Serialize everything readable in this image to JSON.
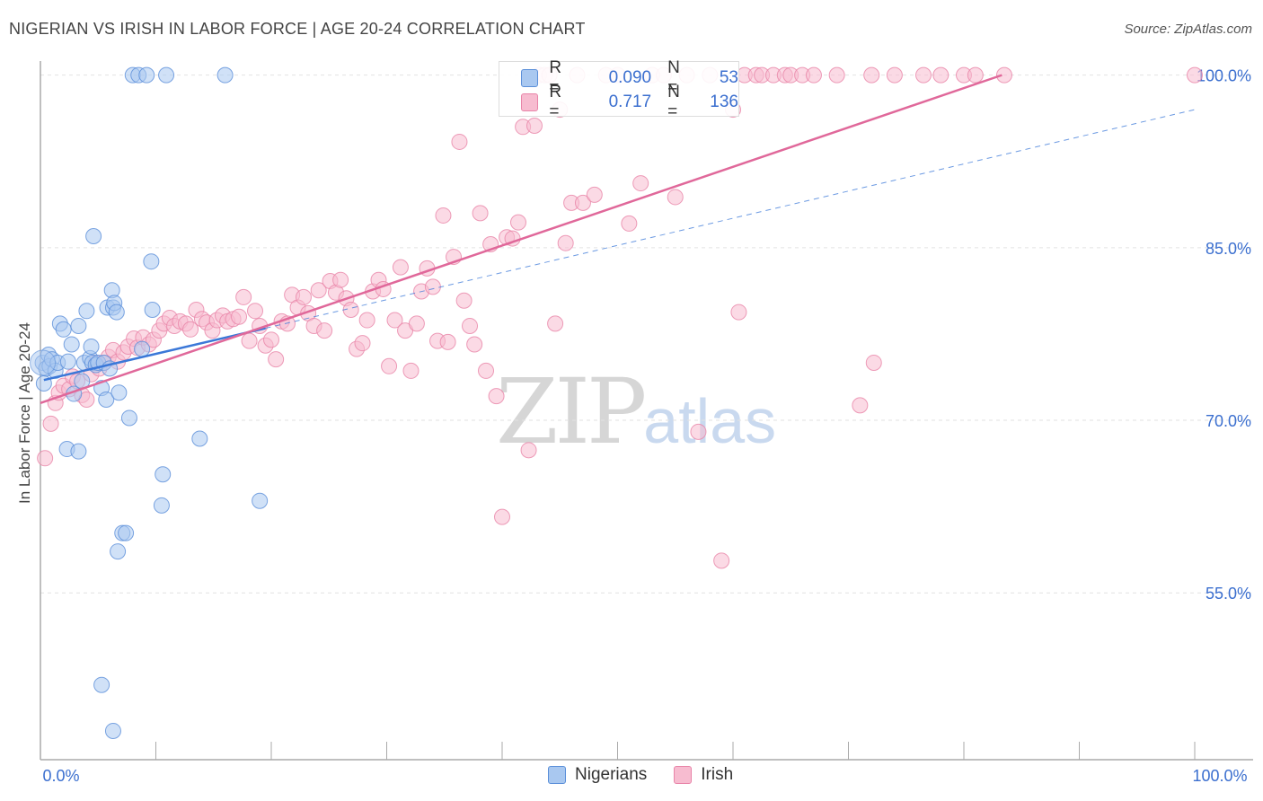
{
  "title": "NIGERIAN VS IRISH IN LABOR FORCE | AGE 20-24 CORRELATION CHART",
  "source": "Source: ZipAtlas.com",
  "watermark": {
    "zip": "ZIP",
    "atlas": "atlas"
  },
  "legend_top": {
    "r_label": "R =",
    "n_label": "N =",
    "rows": [
      {
        "r": "0.090",
        "n": "53"
      },
      {
        "r": "0.717",
        "n": "136"
      }
    ]
  },
  "colors": {
    "nigerians_fill": "#a9c8f0",
    "nigerians_stroke": "#5b8fd9",
    "nigerians_line": "#3b78d8",
    "irish_fill": "#f7bcd0",
    "irish_stroke": "#e884a8",
    "irish_line": "#e0689a",
    "tick_text": "#3b6fcf",
    "grid": "#e2e2e2"
  },
  "chart_data": {
    "type": "scatter",
    "title": "NIGERIAN VS IRISH IN LABOR FORCE | AGE 20-24 CORRELATION CHART",
    "xlabel": "",
    "ylabel": "In Labor Force | Age 20-24",
    "xlim": [
      0,
      100
    ],
    "ylim": [
      40.5,
      102
    ],
    "x_tick_labels": [
      "0.0%",
      "100.0%"
    ],
    "y_ticks": [
      55,
      70,
      85,
      100
    ],
    "y_tick_labels": [
      "55.0%",
      "70.0%",
      "85.0%",
      "100.0%"
    ],
    "grid": true,
    "legend_position": "bottom",
    "series": [
      {
        "name": "Nigerians",
        "R": 0.09,
        "N": 53,
        "trend_solid": [
          [
            0.3,
            73.5
          ],
          [
            19.5,
            78.0
          ]
        ],
        "trend_dashed": [
          [
            19.5,
            78.0
          ],
          [
            100,
            97.0
          ]
        ],
        "points": [
          [
            0.2,
            75.0
          ],
          [
            0.3,
            73.2
          ],
          [
            0.5,
            74.5
          ],
          [
            0.7,
            75.7
          ],
          [
            0.8,
            74.7
          ],
          [
            1.0,
            75.3
          ],
          [
            1.3,
            74.3
          ],
          [
            1.5,
            75.0
          ],
          [
            1.7,
            78.4
          ],
          [
            2.0,
            77.9
          ],
          [
            2.4,
            75.1
          ],
          [
            2.7,
            76.6
          ],
          [
            2.9,
            72.3
          ],
          [
            3.3,
            78.2
          ],
          [
            3.6,
            73.4
          ],
          [
            3.8,
            75.0
          ],
          [
            4.0,
            79.5
          ],
          [
            4.3,
            75.4
          ],
          [
            4.4,
            76.4
          ],
          [
            4.5,
            75.0
          ],
          [
            4.6,
            86.0
          ],
          [
            4.8,
            74.8
          ],
          [
            5.0,
            75.0
          ],
          [
            5.3,
            72.8
          ],
          [
            5.5,
            75.0
          ],
          [
            5.7,
            71.8
          ],
          [
            5.8,
            79.8
          ],
          [
            6.0,
            74.5
          ],
          [
            6.2,
            81.3
          ],
          [
            6.3,
            79.8
          ],
          [
            6.4,
            80.2
          ],
          [
            6.6,
            79.4
          ],
          [
            6.7,
            58.6
          ],
          [
            6.8,
            72.4
          ],
          [
            7.1,
            60.2
          ],
          [
            7.4,
            60.2
          ],
          [
            7.7,
            70.2
          ],
          [
            8.0,
            100.0
          ],
          [
            8.5,
            100.0
          ],
          [
            8.8,
            76.2
          ],
          [
            9.2,
            100.0
          ],
          [
            9.6,
            83.8
          ],
          [
            9.7,
            79.6
          ],
          [
            10.6,
            65.3
          ],
          [
            10.5,
            62.6
          ],
          [
            10.9,
            100.0
          ],
          [
            13.8,
            68.4
          ],
          [
            16.0,
            100.0
          ],
          [
            19.0,
            63.0
          ],
          [
            2.3,
            67.5
          ],
          [
            3.3,
            67.3
          ],
          [
            5.3,
            47.0
          ],
          [
            6.3,
            43.0
          ]
        ]
      },
      {
        "name": "Irish",
        "R": 0.717,
        "N": 136,
        "trend_solid": [
          [
            0.0,
            71.5
          ],
          [
            83.3,
            100.0
          ]
        ],
        "points": [
          [
            0.4,
            66.7
          ],
          [
            0.9,
            69.7
          ],
          [
            1.3,
            71.5
          ],
          [
            1.6,
            72.4
          ],
          [
            2.0,
            73.0
          ],
          [
            2.5,
            72.7
          ],
          [
            2.8,
            73.8
          ],
          [
            3.2,
            73.4
          ],
          [
            3.6,
            72.2
          ],
          [
            4.0,
            71.8
          ],
          [
            4.4,
            74.0
          ],
          [
            4.8,
            75.0
          ],
          [
            5.1,
            74.5
          ],
          [
            5.5,
            75.0
          ],
          [
            5.9,
            75.5
          ],
          [
            6.3,
            76.1
          ],
          [
            6.7,
            75.1
          ],
          [
            7.2,
            75.9
          ],
          [
            7.6,
            76.4
          ],
          [
            8.1,
            77.1
          ],
          [
            8.4,
            76.3
          ],
          [
            8.9,
            77.2
          ],
          [
            9.4,
            76.6
          ],
          [
            9.8,
            77.0
          ],
          [
            10.3,
            77.8
          ],
          [
            10.7,
            78.4
          ],
          [
            11.2,
            78.9
          ],
          [
            11.6,
            78.2
          ],
          [
            12.1,
            78.6
          ],
          [
            12.6,
            78.4
          ],
          [
            13.0,
            77.9
          ],
          [
            13.5,
            79.6
          ],
          [
            14.0,
            78.8
          ],
          [
            14.4,
            78.5
          ],
          [
            14.9,
            77.8
          ],
          [
            15.3,
            78.7
          ],
          [
            15.8,
            79.1
          ],
          [
            16.2,
            78.6
          ],
          [
            16.7,
            78.8
          ],
          [
            17.2,
            79.0
          ],
          [
            17.6,
            80.7
          ],
          [
            18.1,
            76.9
          ],
          [
            18.6,
            79.5
          ],
          [
            19.0,
            78.2
          ],
          [
            19.5,
            76.5
          ],
          [
            20.0,
            77.0
          ],
          [
            20.4,
            75.3
          ],
          [
            20.9,
            78.6
          ],
          [
            21.4,
            78.4
          ],
          [
            21.8,
            80.9
          ],
          [
            22.3,
            79.8
          ],
          [
            22.8,
            80.7
          ],
          [
            23.2,
            79.3
          ],
          [
            23.7,
            78.2
          ],
          [
            24.1,
            81.3
          ],
          [
            24.6,
            77.8
          ],
          [
            25.1,
            82.1
          ],
          [
            25.6,
            81.1
          ],
          [
            26.0,
            82.2
          ],
          [
            26.5,
            80.6
          ],
          [
            26.9,
            79.6
          ],
          [
            27.4,
            76.2
          ],
          [
            27.9,
            76.7
          ],
          [
            28.3,
            78.7
          ],
          [
            28.8,
            81.2
          ],
          [
            29.3,
            82.2
          ],
          [
            29.7,
            81.4
          ],
          [
            30.2,
            74.7
          ],
          [
            30.7,
            78.7
          ],
          [
            31.2,
            83.3
          ],
          [
            31.6,
            77.8
          ],
          [
            32.1,
            74.3
          ],
          [
            32.6,
            78.4
          ],
          [
            33.0,
            81.2
          ],
          [
            33.5,
            83.2
          ],
          [
            34.0,
            81.6
          ],
          [
            34.4,
            76.9
          ],
          [
            34.9,
            87.8
          ],
          [
            35.3,
            76.8
          ],
          [
            35.8,
            84.2
          ],
          [
            36.3,
            94.2
          ],
          [
            36.7,
            80.4
          ],
          [
            37.2,
            78.2
          ],
          [
            37.6,
            76.6
          ],
          [
            38.1,
            88.0
          ],
          [
            38.6,
            74.3
          ],
          [
            39.0,
            85.3
          ],
          [
            39.5,
            72.1
          ],
          [
            40.0,
            61.6
          ],
          [
            40.4,
            85.9
          ],
          [
            40.9,
            85.8
          ],
          [
            41.4,
            87.2
          ],
          [
            41.8,
            95.5
          ],
          [
            42.3,
            67.4
          ],
          [
            42.8,
            95.6
          ],
          [
            43.2,
            100.0
          ],
          [
            43.7,
            100.0
          ],
          [
            44.1,
            100.0
          ],
          [
            44.6,
            78.4
          ],
          [
            45.0,
            97.0
          ],
          [
            45.5,
            85.4
          ],
          [
            46.0,
            88.9
          ],
          [
            46.5,
            100.0
          ],
          [
            47.0,
            88.9
          ],
          [
            48.0,
            89.6
          ],
          [
            49.0,
            100.0
          ],
          [
            50.0,
            100.0
          ],
          [
            51.0,
            87.1
          ],
          [
            52.0,
            90.6
          ],
          [
            53.0,
            100.0
          ],
          [
            54.0,
            100.0
          ],
          [
            55.0,
            89.4
          ],
          [
            56.0,
            100.0
          ],
          [
            57.0,
            69.0
          ],
          [
            58.0,
            100.0
          ],
          [
            59.0,
            57.8
          ],
          [
            60.0,
            97.0
          ],
          [
            60.5,
            79.4
          ],
          [
            61.0,
            100.0
          ],
          [
            62.0,
            100.0
          ],
          [
            62.5,
            100.0
          ],
          [
            63.5,
            100.0
          ],
          [
            64.5,
            100.0
          ],
          [
            65.0,
            100.0
          ],
          [
            66.0,
            100.0
          ],
          [
            67.0,
            100.0
          ],
          [
            69.0,
            100.0
          ],
          [
            72.0,
            100.0
          ],
          [
            71.0,
            71.3
          ],
          [
            72.2,
            75.0
          ],
          [
            74.0,
            100.0
          ],
          [
            76.5,
            100.0
          ],
          [
            78.0,
            100.0
          ],
          [
            80.0,
            100.0
          ],
          [
            81.0,
            100.0
          ],
          [
            83.5,
            100.0
          ],
          [
            100.0,
            100.0
          ]
        ]
      }
    ]
  }
}
